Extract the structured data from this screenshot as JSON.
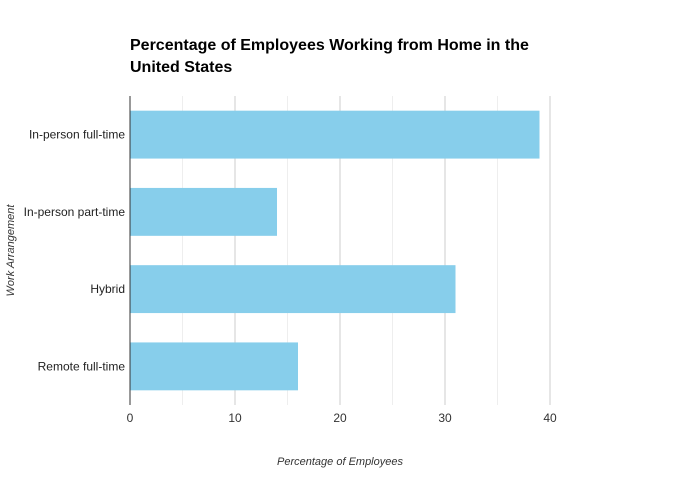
{
  "chart_data": {
    "type": "bar",
    "orientation": "horizontal",
    "title": "Percentage of Employees Working from Home in the United States",
    "xlabel": "Percentage of Employees",
    "ylabel": "Work Arrangement",
    "categories": [
      "In-person full-time",
      "In-person part-time",
      "Hybrid",
      "Remote full-time"
    ],
    "values": [
      39,
      14,
      31,
      16
    ],
    "xlim": [
      0,
      40
    ],
    "x_ticks": [
      0,
      10,
      20,
      30,
      40
    ],
    "grid": true,
    "bar_color": "#87CEEB"
  }
}
